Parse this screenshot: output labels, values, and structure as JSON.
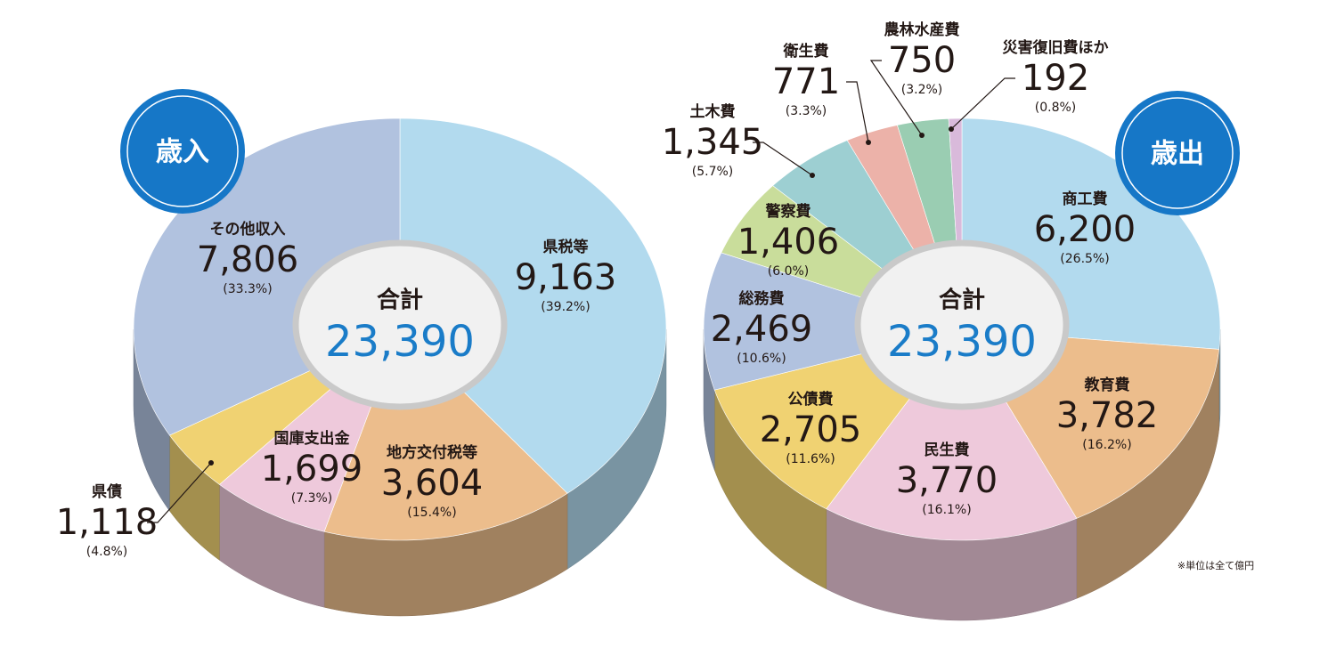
{
  "chart_data": [
    {
      "type": "pie",
      "title": "歳入",
      "center_label": "合計",
      "total": {
        "value": 23390,
        "label": "23,390"
      },
      "categories": [
        "県税等",
        "地方交付税等",
        "国庫支出金",
        "県債",
        "その他収入"
      ],
      "values": [
        9163,
        3604,
        1699,
        1118,
        7806
      ],
      "value_labels": [
        "9,163",
        "3,604",
        "1,699",
        "1,118",
        "7,806"
      ],
      "percents": [
        39.2,
        15.4,
        7.3,
        4.8,
        33.3
      ],
      "percent_labels": [
        "(39.2%)",
        "(15.4%)",
        "(7.3%)",
        "(4.8%)",
        "(33.3%)"
      ],
      "colors": [
        "#b2daee",
        "#ecbd8c",
        "#eec9db",
        "#f0d272",
        "#b1c2df"
      ]
    },
    {
      "type": "pie",
      "title": "歳出",
      "center_label": "合計",
      "total": {
        "value": 23390,
        "label": "23,390"
      },
      "categories": [
        "商工費",
        "教育費",
        "民生費",
        "公債費",
        "総務費",
        "警察費",
        "土木費",
        "衛生費",
        "農林水産費",
        "災害復旧費ほか"
      ],
      "values": [
        6200,
        3782,
        3770,
        2705,
        2469,
        1406,
        1345,
        771,
        750,
        192
      ],
      "value_labels": [
        "6,200",
        "3,782",
        "3,770",
        "2,705",
        "2,469",
        "1,406",
        "1,345",
        "771",
        "750",
        "192"
      ],
      "percents": [
        26.5,
        16.2,
        16.1,
        11.6,
        10.6,
        6.0,
        5.7,
        3.3,
        3.2,
        0.8
      ],
      "percent_labels": [
        "(26.5%)",
        "(16.2%)",
        "(16.1%)",
        "(11.6%)",
        "(10.6%)",
        "(6.0%)",
        "(5.7%)",
        "(3.3%)",
        "(3.2%)",
        "(0.8%)"
      ],
      "colors": [
        "#b2daee",
        "#ecbd8c",
        "#eec9db",
        "#f0d272",
        "#b1c2df",
        "#c9dd9b",
        "#9dcfd2",
        "#ecb2a9",
        "#9acdb2",
        "#d9badb"
      ]
    }
  ],
  "note": "※単位は全て億円"
}
